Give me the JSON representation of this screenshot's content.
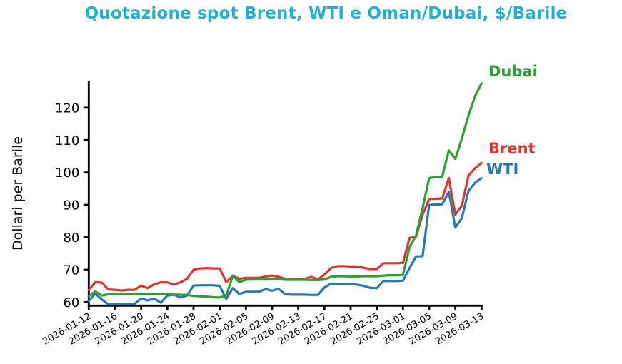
{
  "title": "Quotazione spot Brent, WTI e Oman/Dubai, $/Barile",
  "colors": {
    "title": "#1fb0d2",
    "axis": "#000000",
    "brent": "#d93831",
    "wti": "#2878b5",
    "dubai": "#2e9e36"
  },
  "chart_data": {
    "type": "line",
    "title": "Quotazione spot Brent, WTI e Oman/Dubai, $/Barile",
    "xlabel": "",
    "ylabel": "Dollari per Barile",
    "ylim": [
      58.9,
      127.9
    ],
    "yticks": [
      60,
      70,
      80,
      90,
      100,
      110,
      120
    ],
    "grid": false,
    "legend_position": "end-of-line-labels",
    "xtick_every_days": 4,
    "xtick_labels": [
      "2026-01-12",
      "2026-01-16",
      "2026-01-20",
      "2026-01-24",
      "2026-01-28",
      "2026-02-01",
      "2026-02-05",
      "2026-02-09",
      "2026-02-13",
      "2026-02-17",
      "2026-02-21",
      "2026-02-25",
      "2026-03-01",
      "2026-03-05",
      "2026-03-09",
      "2026-03-13"
    ],
    "x_dates": [
      "2026-01-12",
      "2026-01-13",
      "2026-01-14",
      "2026-01-15",
      "2026-01-16",
      "2026-01-17",
      "2026-01-18",
      "2026-01-19",
      "2026-01-20",
      "2026-01-21",
      "2026-01-22",
      "2026-01-23",
      "2026-01-24",
      "2026-01-25",
      "2026-01-26",
      "2026-01-27",
      "2026-01-28",
      "2026-01-29",
      "2026-01-30",
      "2026-01-31",
      "2026-02-01",
      "2026-02-02",
      "2026-02-03",
      "2026-02-04",
      "2026-02-05",
      "2026-02-06",
      "2026-02-07",
      "2026-02-08",
      "2026-02-09",
      "2026-02-10",
      "2026-02-11",
      "2026-02-12",
      "2026-02-13",
      "2026-02-14",
      "2026-02-15",
      "2026-02-16",
      "2026-02-17",
      "2026-02-18",
      "2026-02-19",
      "2026-02-20",
      "2026-02-21",
      "2026-02-22",
      "2026-02-23",
      "2026-02-24",
      "2026-02-25",
      "2026-02-26",
      "2026-02-27",
      "2026-02-28",
      "2026-03-01",
      "2026-03-02",
      "2026-03-03",
      "2026-03-04",
      "2026-03-05",
      "2026-03-06",
      "2026-03-07",
      "2026-03-08",
      "2026-03-09",
      "2026-03-10",
      "2026-03-11",
      "2026-03-12",
      "2026-03-13"
    ],
    "series": [
      {
        "name": "WTI",
        "color": "#2878b5",
        "values": [
          60.4,
          62.6,
          60.8,
          59.3,
          59.3,
          59.5,
          59.5,
          59.5,
          61.1,
          60.5,
          61.1,
          59.8,
          62.0,
          62.3,
          61.4,
          62.0,
          65.1,
          65.2,
          65.2,
          65.2,
          65.0,
          61.0,
          64.3,
          62.5,
          63.2,
          63.2,
          63.2,
          64.0,
          63.5,
          64.1,
          62.4,
          62.3,
          62.3,
          62.3,
          62.2,
          62.2,
          64.5,
          65.7,
          65.6,
          65.5,
          65.5,
          65.4,
          65.0,
          64.4,
          64.3,
          66.5,
          66.5,
          66.5,
          66.6,
          70.5,
          74.1,
          74.2,
          90.0,
          90.1,
          90.2,
          94.0,
          83.0,
          86.0,
          94.3,
          96.8,
          98.3
        ]
      },
      {
        "name": "Brent",
        "color": "#d93831",
        "values": [
          63.7,
          66.2,
          66.0,
          63.9,
          63.8,
          63.6,
          63.8,
          63.8,
          65.1,
          64.3,
          65.5,
          66.1,
          66.1,
          65.4,
          66.1,
          67.2,
          70.0,
          70.4,
          70.5,
          70.4,
          70.4,
          66.2,
          68.1,
          67.2,
          67.5,
          67.5,
          67.5,
          67.9,
          68.2,
          67.8,
          67.2,
          67.2,
          67.2,
          67.2,
          67.8,
          67.0,
          68.5,
          70.5,
          71.1,
          71.1,
          71.0,
          71.0,
          70.6,
          70.2,
          70.2,
          72.0,
          72.0,
          72.0,
          72.1,
          79.8,
          80.2,
          87.0,
          91.8,
          91.9,
          92.0,
          98.3,
          87.0,
          89.8,
          99.0,
          101.3,
          103.0
        ]
      },
      {
        "name": "Dubai",
        "color": "#2e9e36",
        "values": [
          61.8,
          63.3,
          62.0,
          62.4,
          62.5,
          62.4,
          62.4,
          62.4,
          62.6,
          62.5,
          62.5,
          62.4,
          62.4,
          62.3,
          62.3,
          62.2,
          61.9,
          61.8,
          61.7,
          61.5,
          61.4,
          62.0,
          68.2,
          66.2,
          66.9,
          67.0,
          67.0,
          67.0,
          67.2,
          67.1,
          66.9,
          66.9,
          66.9,
          66.9,
          66.8,
          66.8,
          67.0,
          67.8,
          68.0,
          68.0,
          67.9,
          67.9,
          68.0,
          68.0,
          68.0,
          68.2,
          68.3,
          68.3,
          68.4,
          77.0,
          80.5,
          89.0,
          98.3,
          98.6,
          98.7,
          106.8,
          104.2,
          110.5,
          117.5,
          123.5,
          127.5
        ]
      }
    ]
  }
}
